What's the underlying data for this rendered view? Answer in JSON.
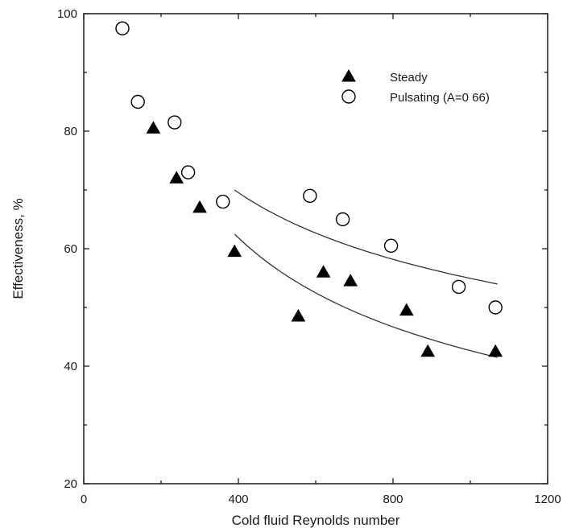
{
  "chart_data": {
    "type": "scatter",
    "xlabel": "Cold fluid Reynolds number",
    "ylabel": "Effectiveness, %",
    "xlim": [
      0,
      1200
    ],
    "ylim": [
      20,
      100
    ],
    "xticks": [
      "0",
      "400",
      "800",
      "1200"
    ],
    "yticks": [
      "20",
      "40",
      "60",
      "80",
      "100"
    ],
    "grid": false,
    "legend_position": "top-right",
    "series": [
      {
        "name": "Steady",
        "marker": "filled-triangle",
        "color": "#000000",
        "x": [
          180,
          240,
          300,
          390,
          555,
          620,
          690,
          835,
          890,
          1065
        ],
        "y": [
          80.5,
          72,
          67,
          59.5,
          48.5,
          56,
          54.5,
          49.5,
          42.5,
          42.5
        ]
      },
      {
        "name": "Pulsating (A=0 66)",
        "marker": "open-circle",
        "color": "#000000",
        "x": [
          100,
          140,
          235,
          270,
          360,
          585,
          670,
          795,
          970,
          1065
        ],
        "y": [
          97.5,
          85,
          81.5,
          73,
          68,
          69,
          65,
          60.5,
          53.5,
          50
        ]
      }
    ],
    "curves": [
      {
        "series": "Pulsating (A=0 66)",
        "x": [
          390,
          1070
        ],
        "y": [
          70,
          54
        ]
      },
      {
        "series": "Steady",
        "x": [
          390,
          1070
        ],
        "y": [
          62.5,
          41.5
        ]
      }
    ]
  }
}
